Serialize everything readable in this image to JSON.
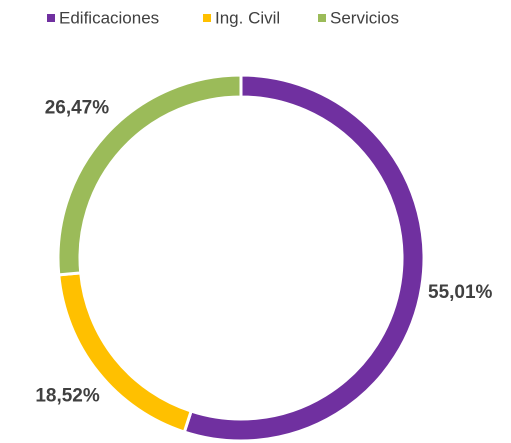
{
  "chart_data": {
    "type": "donut",
    "categories": [
      "Edificaciones",
      "Ing. Civil",
      "Servicios"
    ],
    "values": [
      55.01,
      18.52,
      26.47
    ],
    "value_labels": [
      "55,01%",
      "18,52%",
      "26,47%"
    ],
    "colors": [
      "#7030a0",
      "#ffc000",
      "#9bbb59"
    ]
  }
}
